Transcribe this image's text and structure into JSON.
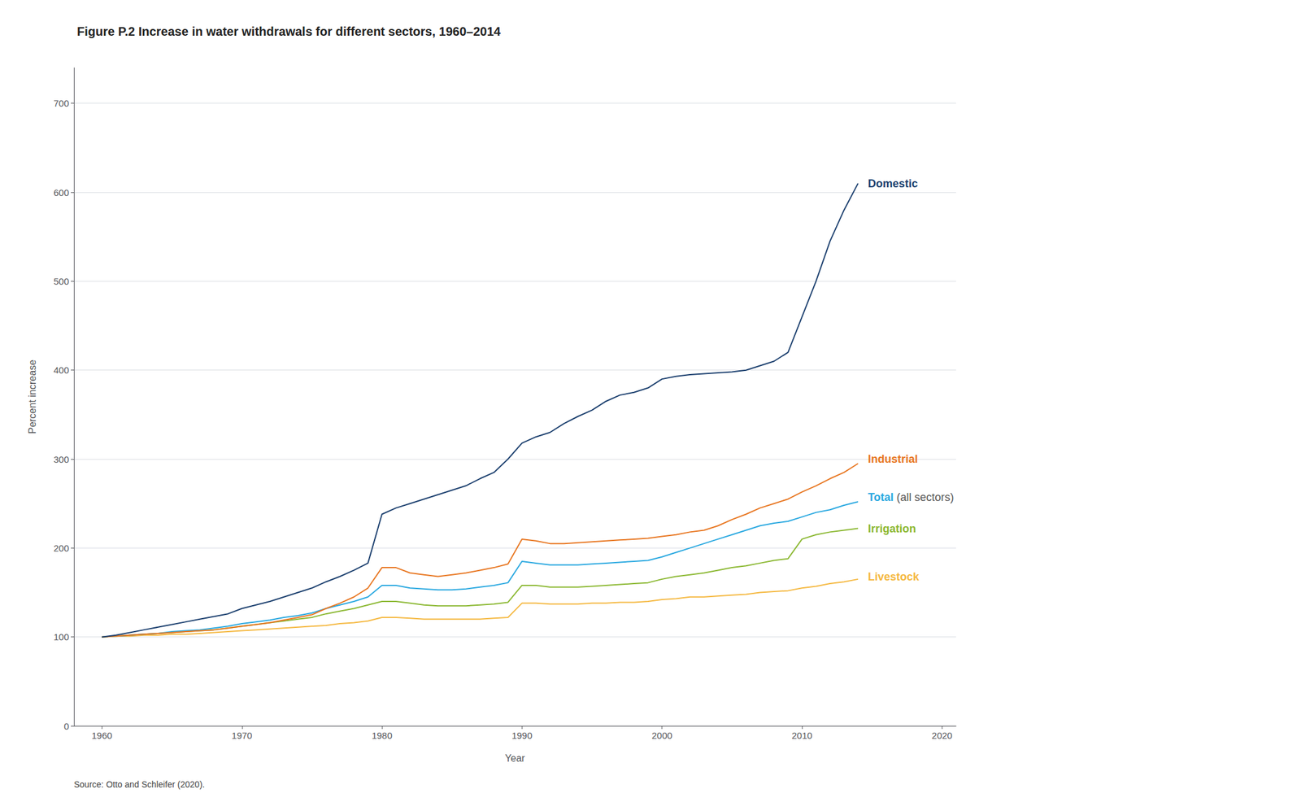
{
  "chart_data": {
    "type": "line",
    "title": "Figure P.2 Increase in water withdrawals for different sectors, 1960–2014",
    "xlabel": "Year",
    "ylabel": "Percent increase",
    "source": "Source: Otto and Schleifer (2020).",
    "xlim": [
      1958,
      2021
    ],
    "ylim": [
      0,
      740
    ],
    "xticks": [
      1960,
      1970,
      1980,
      1990,
      2000,
      2010,
      2020
    ],
    "yticks": [
      0,
      100,
      200,
      300,
      400,
      500,
      600,
      700
    ],
    "grid": true,
    "x": [
      1960,
      1961,
      1962,
      1963,
      1964,
      1965,
      1966,
      1967,
      1968,
      1969,
      1970,
      1971,
      1972,
      1973,
      1974,
      1975,
      1976,
      1977,
      1978,
      1979,
      1980,
      1981,
      1982,
      1983,
      1984,
      1985,
      1986,
      1987,
      1988,
      1989,
      1990,
      1991,
      1992,
      1993,
      1994,
      1995,
      1996,
      1997,
      1998,
      1999,
      2000,
      2001,
      2002,
      2003,
      2004,
      2005,
      2006,
      2007,
      2008,
      2009,
      2010,
      2011,
      2012,
      2013,
      2014
    ],
    "series": [
      {
        "name": "Livestock",
        "color": "#f5b942",
        "values": [
          100,
          101,
          101,
          102,
          102,
          103,
          103,
          104,
          105,
          106,
          107,
          108,
          109,
          110,
          111,
          112,
          113,
          115,
          116,
          118,
          122,
          122,
          121,
          120,
          120,
          120,
          120,
          120,
          121,
          122,
          138,
          138,
          137,
          137,
          137,
          138,
          138,
          139,
          139,
          140,
          142,
          143,
          145,
          145,
          146,
          147,
          148,
          150,
          151,
          152,
          155,
          157,
          160,
          162,
          165
        ]
      },
      {
        "name": "Irrigation",
        "color": "#8bb832",
        "values": [
          100,
          101,
          102,
          103,
          104,
          105,
          106,
          107,
          108,
          110,
          112,
          114,
          116,
          118,
          120,
          122,
          126,
          129,
          132,
          136,
          140,
          140,
          138,
          136,
          135,
          135,
          135,
          136,
          137,
          139,
          158,
          158,
          156,
          156,
          156,
          157,
          158,
          159,
          160,
          161,
          165,
          168,
          170,
          172,
          175,
          178,
          180,
          183,
          186,
          188,
          210,
          215,
          218,
          220,
          222
        ]
      },
      {
        "name": "Total",
        "color": "#29a8e0",
        "values": [
          100,
          101,
          102,
          103,
          104,
          106,
          107,
          108,
          110,
          112,
          115,
          117,
          119,
          122,
          124,
          127,
          132,
          136,
          140,
          145,
          158,
          158,
          155,
          154,
          153,
          153,
          154,
          156,
          158,
          161,
          185,
          183,
          181,
          181,
          181,
          182,
          183,
          184,
          185,
          186,
          190,
          195,
          200,
          205,
          210,
          215,
          220,
          225,
          228,
          230,
          235,
          240,
          243,
          248,
          252
        ]
      },
      {
        "name": "Industrial",
        "color": "#e87722",
        "values": [
          100,
          101,
          102,
          103,
          104,
          105,
          106,
          107,
          108,
          110,
          112,
          114,
          116,
          119,
          122,
          125,
          132,
          138,
          145,
          155,
          178,
          178,
          172,
          170,
          168,
          170,
          172,
          175,
          178,
          182,
          210,
          208,
          205,
          205,
          206,
          207,
          208,
          209,
          210,
          211,
          213,
          215,
          218,
          220,
          225,
          232,
          238,
          245,
          250,
          255,
          263,
          270,
          278,
          285,
          295
        ]
      },
      {
        "name": "Domestic",
        "color": "#1b3f6e",
        "values": [
          100,
          102,
          105,
          108,
          111,
          114,
          117,
          120,
          123,
          126,
          132,
          136,
          140,
          145,
          150,
          155,
          162,
          168,
          175,
          183,
          238,
          245,
          250,
          255,
          260,
          265,
          270,
          278,
          285,
          300,
          318,
          325,
          330,
          340,
          348,
          355,
          365,
          372,
          375,
          380,
          390,
          393,
          395,
          396,
          397,
          398,
          400,
          405,
          410,
          420,
          460,
          500,
          545,
          580,
          610
        ]
      }
    ],
    "annotations": [
      {
        "text": "Domestic",
        "y": 610,
        "color": "#1b3f6e"
      },
      {
        "text": "Industrial",
        "y": 300,
        "color": "#e87722"
      },
      {
        "text": "Total",
        "suffix": " (all sectors)",
        "y": 257,
        "color": "#29a8e0",
        "suffix_color": "#555555"
      },
      {
        "text": "Irrigation",
        "y": 222,
        "color": "#8bb832"
      },
      {
        "text": "Livestock",
        "y": 168,
        "color": "#f5b942"
      }
    ]
  }
}
